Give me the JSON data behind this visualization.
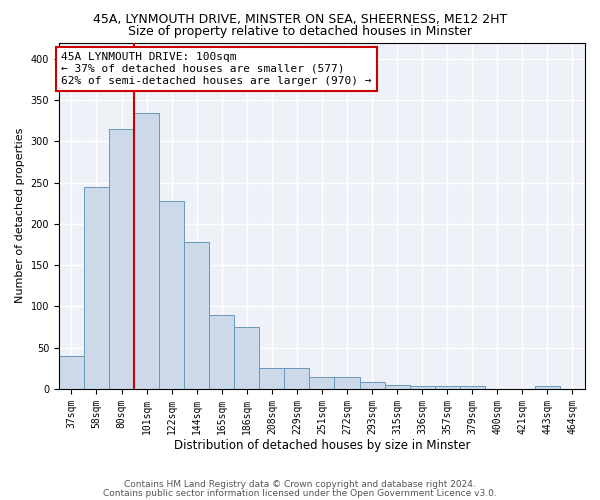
{
  "title1": "45A, LYNMOUTH DRIVE, MINSTER ON SEA, SHEERNESS, ME12 2HT",
  "title2": "Size of property relative to detached houses in Minster",
  "xlabel": "Distribution of detached houses by size in Minster",
  "ylabel": "Number of detached properties",
  "categories": [
    "37sqm",
    "58sqm",
    "80sqm",
    "101sqm",
    "122sqm",
    "144sqm",
    "165sqm",
    "186sqm",
    "208sqm",
    "229sqm",
    "251sqm",
    "272sqm",
    "293sqm",
    "315sqm",
    "336sqm",
    "357sqm",
    "379sqm",
    "400sqm",
    "421sqm",
    "443sqm",
    "464sqm"
  ],
  "values": [
    40,
    245,
    315,
    335,
    228,
    178,
    90,
    75,
    25,
    25,
    15,
    15,
    8,
    5,
    4,
    4,
    3,
    0,
    0,
    3,
    0
  ],
  "bar_color": "#ccd9e8",
  "bar_edge_color": "#6699bb",
  "annotation_line1": "45A LYNMOUTH DRIVE: 100sqm",
  "annotation_line2": "← 37% of detached houses are smaller (577)",
  "annotation_line3": "62% of semi-detached houses are larger (970) →",
  "annotation_box_color": "white",
  "annotation_box_edge": "#cc0000",
  "red_line_x": 2.5,
  "ylim": [
    0,
    420
  ],
  "yticks": [
    0,
    50,
    100,
    150,
    200,
    250,
    300,
    350,
    400
  ],
  "footer1": "Contains HM Land Registry data © Crown copyright and database right 2024.",
  "footer2": "Contains public sector information licensed under the Open Government Licence v3.0.",
  "background_color": "#eef2f8",
  "grid_color": "#ffffff",
  "title1_fontsize": 9,
  "title2_fontsize": 9,
  "xlabel_fontsize": 8.5,
  "ylabel_fontsize": 8,
  "tick_fontsize": 7,
  "annotation_fontsize": 8,
  "footer_fontsize": 6.5
}
